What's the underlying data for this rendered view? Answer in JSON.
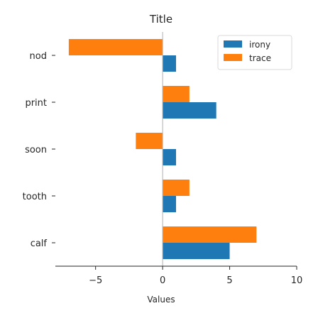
{
  "chart_data": {
    "type": "bar",
    "orientation": "horizontal",
    "title": "Title",
    "xlabel": "Values",
    "ylabel": "",
    "xlim": [
      -8,
      10
    ],
    "x_ticks": [
      -5,
      0,
      5,
      10
    ],
    "categories": [
      "calf",
      "tooth",
      "soon",
      "print",
      "nod"
    ],
    "series": [
      {
        "name": "irony",
        "color": "#1f77b4",
        "values": [
          5,
          1,
          1,
          4,
          1
        ]
      },
      {
        "name": "trace",
        "color": "#ff7f0e",
        "values": [
          7,
          2,
          -2,
          2,
          -7
        ]
      }
    ],
    "grid": false,
    "legend_position": "top-right"
  }
}
